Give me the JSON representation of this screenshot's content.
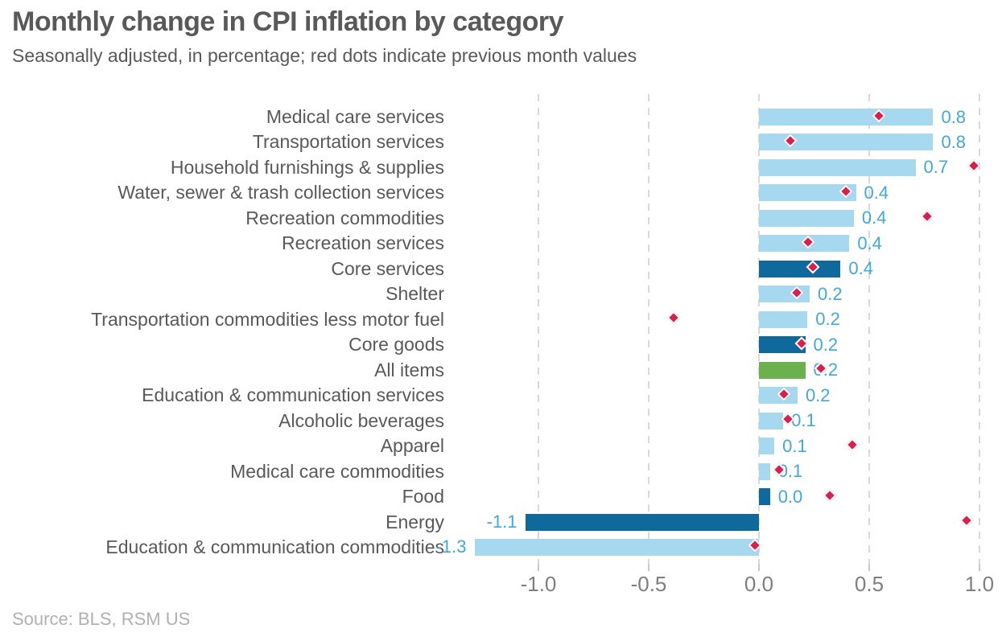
{
  "header": {
    "title": "Monthly change in CPI inflation by category",
    "subtitle": "Seasonally adjusted, in percentage; red dots indicate previous month values"
  },
  "footer": {
    "source": "Source: BLS, RSM US"
  },
  "colors": {
    "bar_light_blue": "#a6d8f0",
    "bar_dark_blue": "#10699c",
    "bar_green": "#6cb14f",
    "dot_red": "#da1e4e",
    "value_text": "#3fa9dc",
    "category_text": "#595959",
    "axis_text": "#7f7f7f",
    "gridline": "#d9d9d9",
    "source_text": "#b0b0b0"
  },
  "chart_data": {
    "type": "bar",
    "orientation": "horizontal",
    "title": "Monthly change in CPI inflation by category",
    "subtitle": "Seasonally adjusted, in percentage; red dots indicate previous month values",
    "xlabel": "",
    "ylabel": "",
    "xlim": [
      -1.45,
      1.1
    ],
    "x_ticks": [
      -1.0,
      -0.5,
      0.0,
      0.5,
      1.0
    ],
    "x_tick_labels": [
      "-1.0",
      "-0.5",
      "0.0",
      "0.5",
      "1.0"
    ],
    "grid": "vertical-dashed",
    "legend": "none",
    "series_note": "bars = current month change; red diamond dots = previous month values",
    "rows": [
      {
        "category": "Medical care services",
        "value": 0.8,
        "label": "0.8",
        "bar_end": 0.79,
        "color": "light_blue",
        "previous": 0.55
      },
      {
        "category": "Transportation services",
        "value": 0.8,
        "label": "0.8",
        "bar_end": 0.79,
        "color": "light_blue",
        "previous": 0.15
      },
      {
        "category": "Household furnishings & supplies",
        "value": 0.7,
        "label": "0.7",
        "bar_end": 0.71,
        "color": "light_blue",
        "previous": 0.98
      },
      {
        "category": "Water, sewer & trash collection services",
        "value": 0.4,
        "label": "0.4",
        "bar_end": 0.44,
        "color": "light_blue",
        "previous": 0.4
      },
      {
        "category": "Recreation commodities",
        "value": 0.4,
        "label": "0.4",
        "bar_end": 0.43,
        "color": "light_blue",
        "previous": 0.77
      },
      {
        "category": "Recreation services",
        "value": 0.4,
        "label": "0.4",
        "bar_end": 0.41,
        "color": "light_blue",
        "previous": 0.23
      },
      {
        "category": "Core services",
        "value": 0.4,
        "label": "0.4",
        "bar_end": 0.37,
        "color": "dark_blue",
        "previous": 0.25
      },
      {
        "category": "Shelter",
        "value": 0.2,
        "label": "0.2",
        "bar_end": 0.23,
        "color": "light_blue",
        "previous": 0.18
      },
      {
        "category": "Transportation commodities less motor fuel",
        "value": 0.2,
        "label": "0.2",
        "bar_end": 0.22,
        "color": "light_blue",
        "previous": -0.38
      },
      {
        "category": "Core goods",
        "value": 0.2,
        "label": "0.2",
        "bar_end": 0.21,
        "color": "dark_blue",
        "previous": 0.2
      },
      {
        "category": "All items",
        "value": 0.2,
        "label": "0.2",
        "bar_end": 0.21,
        "color": "green",
        "previous": 0.29
      },
      {
        "category": "Education & communication services",
        "value": 0.2,
        "label": "0.2",
        "bar_end": 0.175,
        "color": "light_blue",
        "previous": 0.12
      },
      {
        "category": "Alcoholic beverages",
        "value": 0.1,
        "label": "0.1",
        "bar_end": 0.11,
        "color": "light_blue",
        "previous": 0.14
      },
      {
        "category": "Apparel",
        "value": 0.1,
        "label": "0.1",
        "bar_end": 0.07,
        "color": "light_blue",
        "previous": 0.43
      },
      {
        "category": "Medical care commodities",
        "value": 0.1,
        "label": "0.1",
        "bar_end": 0.05,
        "color": "light_blue",
        "previous": 0.1
      },
      {
        "category": "Food",
        "value": 0.0,
        "label": "0.0",
        "bar_end": 0.05,
        "color": "dark_blue",
        "previous": 0.33
      },
      {
        "category": "Energy",
        "value": -1.1,
        "label": "-1.1",
        "bar_end": -1.06,
        "color": "dark_blue",
        "previous": 0.95
      },
      {
        "category": "Education & communication commodities",
        "value": -1.3,
        "label": "-1.3",
        "bar_end": -1.29,
        "color": "light_blue",
        "previous": -0.01
      }
    ]
  }
}
